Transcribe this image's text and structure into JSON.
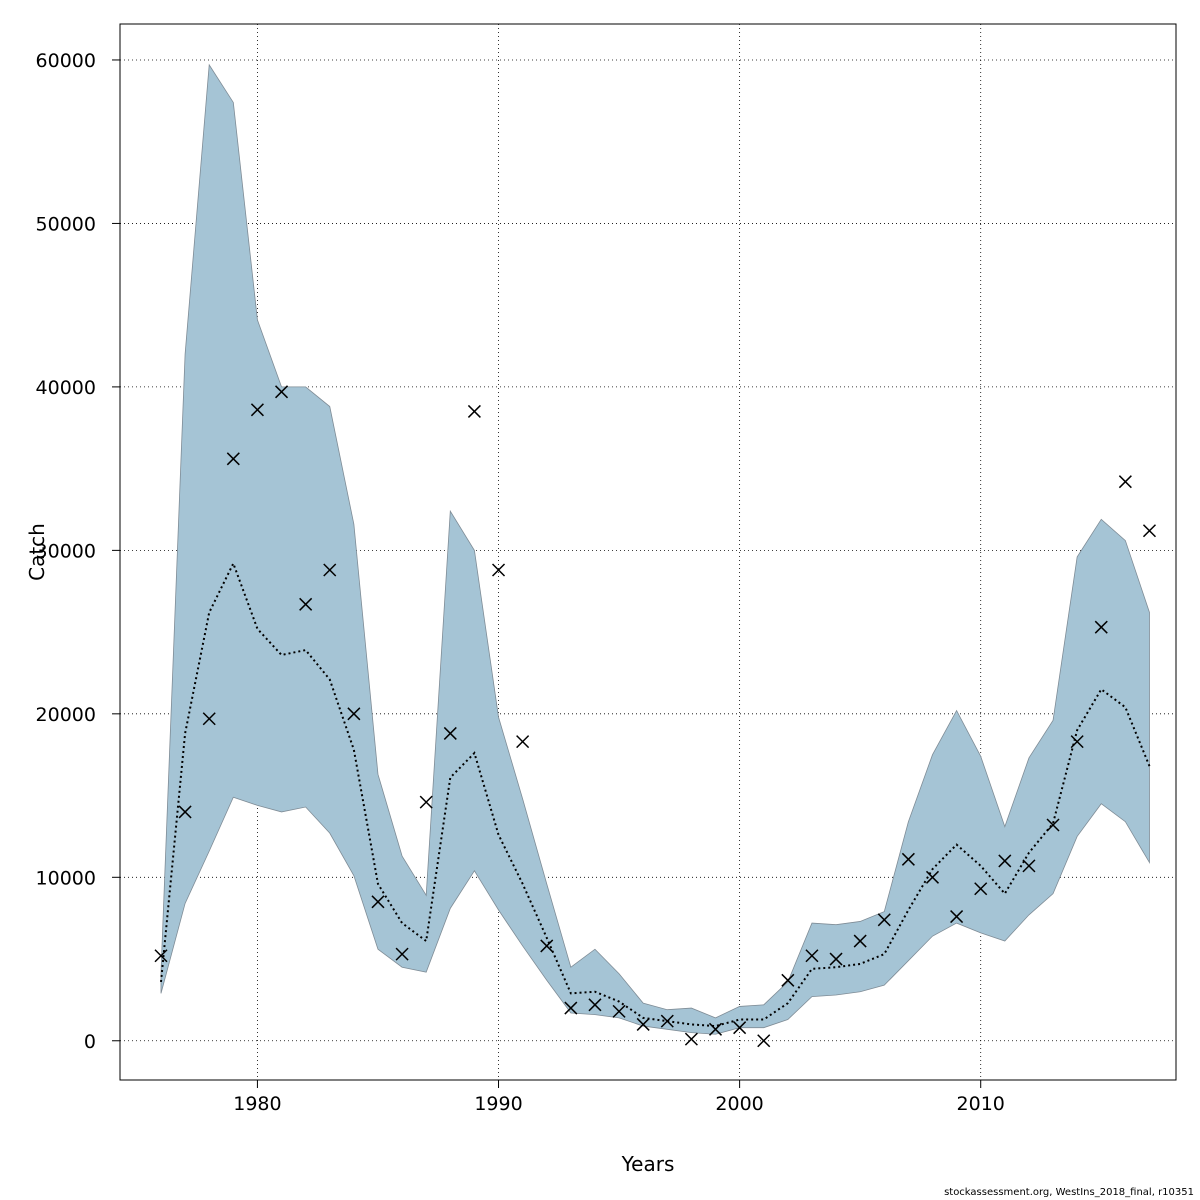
{
  "chart_data": {
    "type": "line",
    "title": "",
    "xlabel": "Years",
    "ylabel": "Catch",
    "xlim": [
      1974.3,
      2018.1
    ],
    "ylim": [
      -2400,
      62200
    ],
    "xticks": [
      1980,
      1990,
      2000,
      2010
    ],
    "yticks": [
      0,
      10000,
      20000,
      30000,
      40000,
      50000,
      60000
    ],
    "grid": true,
    "legend": "none",
    "colors": {
      "band": "#a5c4d5",
      "band_edge": "#7f8c96",
      "line": "#000000",
      "points": "#000000",
      "grid": "#000000"
    },
    "x": [
      1976,
      1977,
      1978,
      1979,
      1980,
      1981,
      1982,
      1983,
      1984,
      1985,
      1986,
      1987,
      1988,
      1989,
      1990,
      1991,
      1992,
      1993,
      1994,
      1995,
      1996,
      1997,
      1998,
      1999,
      2000,
      2001,
      2002,
      2003,
      2004,
      2005,
      2006,
      2007,
      2008,
      2009,
      2010,
      2011,
      2012,
      2013,
      2014,
      2015,
      2016,
      2017
    ],
    "series": [
      {
        "type": "band",
        "lower": [
          2900,
          8400,
          11600,
          14900,
          14400,
          14000,
          14300,
          12700,
          10100,
          5600,
          4500,
          4200,
          8100,
          10400,
          8000,
          5800,
          3700,
          1700,
          1600,
          1400,
          900,
          700,
          500,
          400,
          800,
          800,
          1300,
          2700,
          2800,
          3000,
          3400,
          4900,
          6400,
          7200,
          6600,
          6100,
          7700,
          9000,
          12500,
          14500,
          13400,
          10900
        ],
        "upper": [
          4200,
          42000,
          59700,
          57400,
          44100,
          40000,
          40000,
          38800,
          31600,
          16300,
          11300,
          8900,
          32400,
          30000,
          19800,
          14800,
          9600,
          4500,
          5600,
          4100,
          2300,
          1900,
          2000,
          1400,
          2100,
          2200,
          3600,
          7200,
          7100,
          7300,
          7900,
          13400,
          17500,
          20200,
          17400,
          13100,
          17300,
          19600,
          29600,
          31900,
          30600,
          26200
        ]
      },
      {
        "type": "line",
        "style": "dotted",
        "values": [
          3600,
          18800,
          26200,
          29200,
          25200,
          23600,
          23900,
          22100,
          17800,
          9600,
          7200,
          6100,
          16100,
          17600,
          12600,
          9600,
          6300,
          2900,
          3000,
          2400,
          1400,
          1200,
          1000,
          900,
          1300,
          1300,
          2300,
          4400,
          4500,
          4700,
          5300,
          8000,
          10500,
          12000,
          10700,
          9000,
          11500,
          13300,
          19000,
          21500,
          20400,
          16800
        ]
      },
      {
        "type": "scatter",
        "marker": "x",
        "values": [
          5200,
          14000,
          19700,
          35600,
          38600,
          39700,
          26700,
          28800,
          20000,
          8500,
          5300,
          14600,
          18800,
          38500,
          28800,
          18300,
          5800,
          2000,
          2200,
          1800,
          1000,
          1200,
          100,
          700,
          800,
          0,
          3700,
          5200,
          5000,
          6100,
          7400,
          11100,
          10000,
          7600,
          9300,
          11000,
          10700,
          13200,
          18300,
          25300,
          34200,
          31200
        ]
      }
    ]
  },
  "footer": {
    "text": "stockassessment.org, WestIns_2018_final, r10351"
  }
}
